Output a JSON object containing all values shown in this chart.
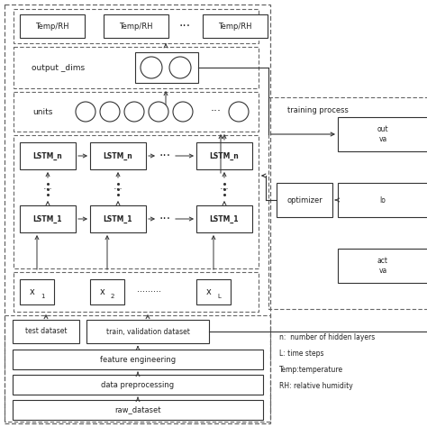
{
  "bg_color": "#ffffff",
  "dashed_color": "#666666",
  "box_edge": "#333333",
  "arrow_color": "#333333",
  "fig_size": [
    4.74,
    4.74
  ],
  "dpi": 100,
  "legend_text": [
    "n:  number of hidden layers",
    "L: time steps",
    "Temp:temperature",
    "RH: relative humidity"
  ]
}
